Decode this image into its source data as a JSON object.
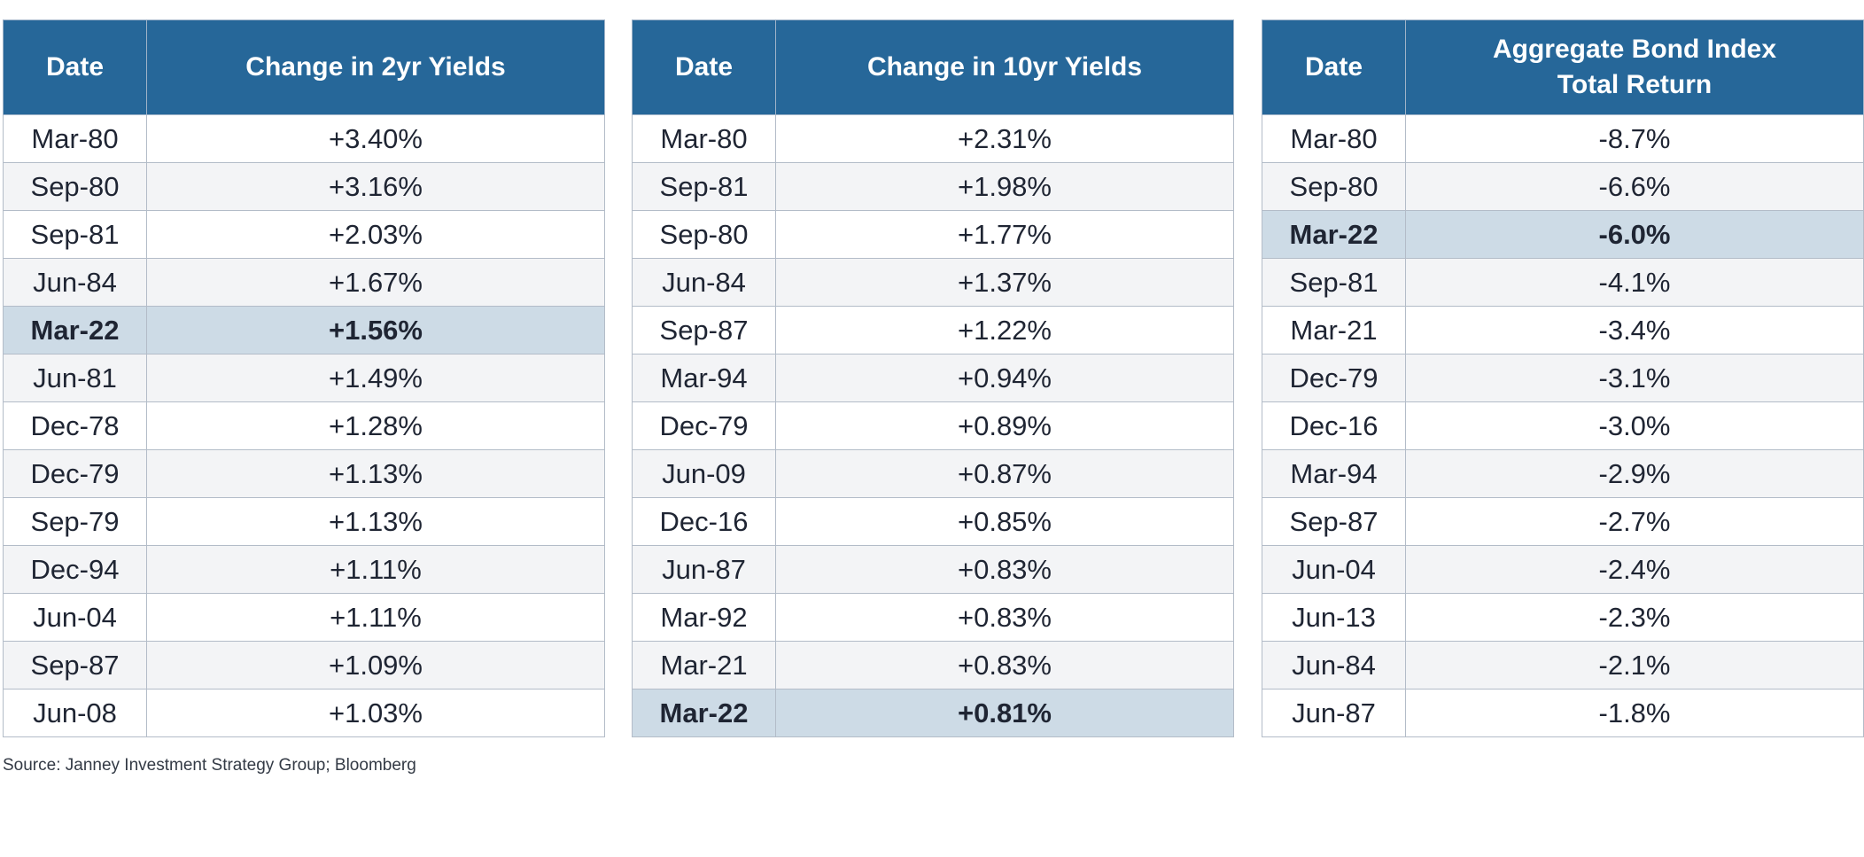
{
  "colors": {
    "header_bg": "#266799",
    "highlight_bg": "#cddbe6",
    "row_alt_bg": "#f3f4f6",
    "border": "#b3bcc8"
  },
  "highlight_date": "Mar-22",
  "source": "Source: Janney Investment Strategy Group; Bloomberg",
  "chart_data": [
    {
      "type": "table",
      "columns": [
        "Date",
        "Change in 2yr Yields"
      ],
      "rows": [
        [
          "Mar-80",
          "+3.40%"
        ],
        [
          "Sep-80",
          "+3.16%"
        ],
        [
          "Sep-81",
          "+2.03%"
        ],
        [
          "Jun-84",
          "+1.67%"
        ],
        [
          "Mar-22",
          "+1.56%"
        ],
        [
          "Jun-81",
          "+1.49%"
        ],
        [
          "Dec-78",
          "+1.28%"
        ],
        [
          "Dec-79",
          "+1.13%"
        ],
        [
          "Sep-79",
          "+1.13%"
        ],
        [
          "Dec-94",
          "+1.11%"
        ],
        [
          "Jun-04",
          "+1.11%"
        ],
        [
          "Sep-87",
          "+1.09%"
        ],
        [
          "Jun-08",
          "+1.03%"
        ]
      ]
    },
    {
      "type": "table",
      "columns": [
        "Date",
        "Change in 10yr Yields"
      ],
      "rows": [
        [
          "Mar-80",
          "+2.31%"
        ],
        [
          "Sep-81",
          "+1.98%"
        ],
        [
          "Sep-80",
          "+1.77%"
        ],
        [
          "Jun-84",
          "+1.37%"
        ],
        [
          "Sep-87",
          "+1.22%"
        ],
        [
          "Mar-94",
          "+0.94%"
        ],
        [
          "Dec-79",
          "+0.89%"
        ],
        [
          "Jun-09",
          "+0.87%"
        ],
        [
          "Dec-16",
          "+0.85%"
        ],
        [
          "Jun-87",
          "+0.83%"
        ],
        [
          "Mar-92",
          "+0.83%"
        ],
        [
          "Mar-21",
          "+0.83%"
        ],
        [
          "Mar-22",
          "+0.81%"
        ]
      ]
    },
    {
      "type": "table",
      "columns": [
        "Date",
        "Aggregate Bond Index\nTotal Return"
      ],
      "rows": [
        [
          "Mar-80",
          "-8.7%"
        ],
        [
          "Sep-80",
          "-6.6%"
        ],
        [
          "Mar-22",
          "-6.0%"
        ],
        [
          "Sep-81",
          "-4.1%"
        ],
        [
          "Mar-21",
          "-3.4%"
        ],
        [
          "Dec-79",
          "-3.1%"
        ],
        [
          "Dec-16",
          "-3.0%"
        ],
        [
          "Mar-94",
          "-2.9%"
        ],
        [
          "Sep-87",
          "-2.7%"
        ],
        [
          "Jun-04",
          "-2.4%"
        ],
        [
          "Jun-13",
          "-2.3%"
        ],
        [
          "Jun-84",
          "-2.1%"
        ],
        [
          "Jun-87",
          "-1.8%"
        ]
      ]
    }
  ]
}
